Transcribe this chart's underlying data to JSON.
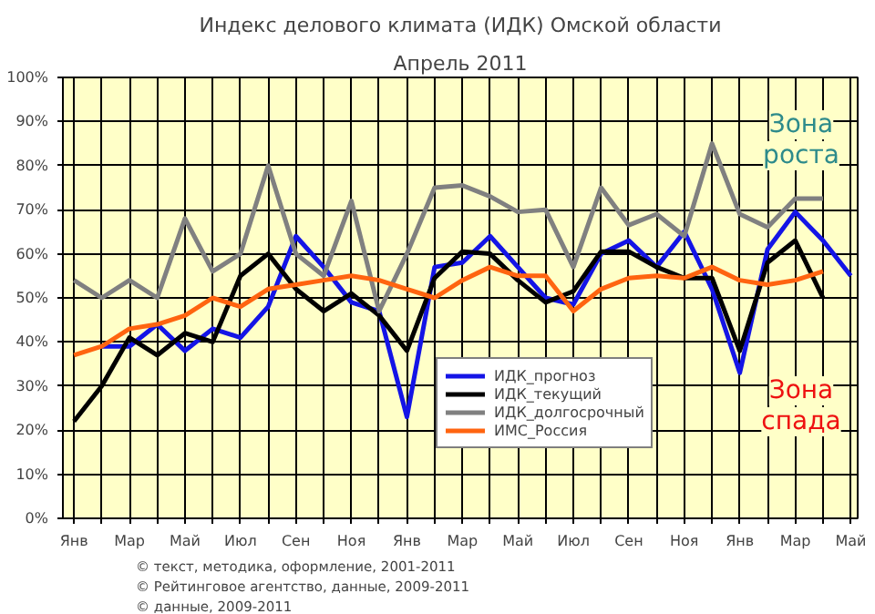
{
  "chart_data": {
    "type": "line",
    "title": "Индекс делового климата (ИДК) Омской области",
    "subtitle": "Апрель 2011",
    "categories": [
      "Янв",
      null,
      "Мар",
      null,
      "Май",
      null,
      "Июл",
      null,
      "Сен",
      null,
      "Ноя",
      null,
      "Янв",
      null,
      "Мар",
      null,
      "Май",
      null,
      "Июл",
      null,
      "Сен",
      null,
      "Ноя",
      null,
      "Янв",
      null,
      "Мар",
      null,
      "Май"
    ],
    "series": [
      {
        "name": "ИДК_прогноз",
        "color": "#1414e6",
        "values": [
          null,
          39,
          39,
          44,
          38,
          43,
          41,
          48,
          64,
          57,
          49,
          47,
          23,
          57,
          58,
          64,
          57,
          50,
          48.5,
          60,
          63,
          57,
          65,
          52,
          33,
          61,
          69.5,
          63,
          55
        ]
      },
      {
        "name": "ИДК_текущий",
        "color": "#000000",
        "values": [
          22,
          30,
          41,
          37,
          42,
          40,
          55,
          60,
          52,
          47,
          51,
          46,
          38,
          54.5,
          60.5,
          60,
          54,
          49,
          51.5,
          60.5,
          60.5,
          57,
          54.5,
          54.5,
          38,
          58,
          63,
          50,
          null
        ]
      },
      {
        "name": "ИДК_долгосрочный",
        "color": "#808080",
        "values": [
          54,
          50,
          54,
          50,
          68,
          56,
          60,
          80,
          60,
          55,
          72,
          47,
          60,
          75,
          75.5,
          73,
          69.5,
          70,
          57,
          75,
          66.5,
          69,
          64,
          85,
          69,
          66,
          72.5,
          72.5,
          null
        ]
      },
      {
        "name": "ИМС_Россия",
        "color": "#ff6410",
        "values": [
          37,
          39,
          43,
          44,
          46,
          50,
          48,
          52,
          53,
          54,
          55,
          54,
          52,
          50,
          54,
          57,
          55,
          55,
          47,
          52,
          54.5,
          55,
          54.5,
          57,
          54,
          53,
          54,
          56,
          null
        ]
      }
    ],
    "ylim": [
      0,
      100
    ],
    "yticks": [
      {
        "value": 0,
        "label": "0%"
      },
      {
        "value": 10,
        "label": "10%"
      },
      {
        "value": 20,
        "label": "20%"
      },
      {
        "value": 30,
        "label": "30%"
      },
      {
        "value": 40,
        "label": "40%"
      },
      {
        "value": 50,
        "label": "50%"
      },
      {
        "value": 60,
        "label": "60%"
      },
      {
        "value": 70,
        "label": "70%"
      },
      {
        "value": 80,
        "label": "80%"
      },
      {
        "value": 90,
        "label": "90%"
      },
      {
        "value": 100,
        "label": "100%"
      }
    ],
    "grid": true,
    "legend": "bottom",
    "marker": "none",
    "line_style": "solid",
    "annotations": [
      "Зона\nроста",
      "Зона\nспада",
      "© текст, методика, оформление, 2001-2011",
      "© Рейтинговое агентство, данные, 2009-2011",
      "© данные, 2009-2011"
    ]
  }
}
